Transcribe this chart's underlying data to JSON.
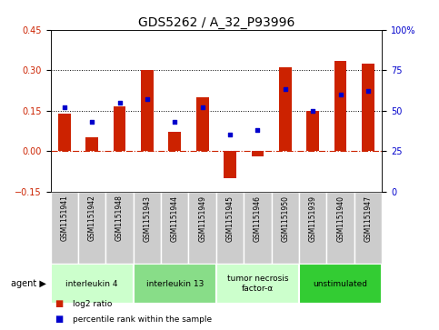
{
  "title": "GDS5262 / A_32_P93996",
  "samples": [
    "GSM1151941",
    "GSM1151942",
    "GSM1151948",
    "GSM1151943",
    "GSM1151944",
    "GSM1151949",
    "GSM1151945",
    "GSM1151946",
    "GSM1151950",
    "GSM1151939",
    "GSM1151940",
    "GSM1151947"
  ],
  "log2_ratio": [
    0.14,
    0.05,
    0.165,
    0.3,
    0.07,
    0.2,
    -0.1,
    -0.02,
    0.31,
    0.148,
    0.335,
    0.325
  ],
  "percentile": [
    52,
    43,
    55,
    57,
    43,
    52,
    35,
    38,
    63,
    50,
    60,
    62
  ],
  "ylim_left": [
    -0.15,
    0.45
  ],
  "ylim_right": [
    0,
    100
  ],
  "yticks_left": [
    -0.15,
    0,
    0.15,
    0.3,
    0.45
  ],
  "yticks_right": [
    0,
    25,
    50,
    75,
    100
  ],
  "hlines": [
    0.15,
    0.3
  ],
  "bar_color": "#cc2200",
  "dot_color": "#0000cc",
  "zero_line_color": "#cc2200",
  "agents": [
    {
      "label": "interleukin 4",
      "start": 0,
      "end": 3,
      "color": "#ccffcc"
    },
    {
      "label": "interleukin 13",
      "start": 3,
      "end": 6,
      "color": "#88dd88"
    },
    {
      "label": "tumor necrosis\nfactor-α",
      "start": 6,
      "end": 9,
      "color": "#ccffcc"
    },
    {
      "label": "unstimulated",
      "start": 9,
      "end": 12,
      "color": "#33cc33"
    }
  ],
  "legend_items": [
    {
      "label": "log2 ratio",
      "color": "#cc2200"
    },
    {
      "label": "percentile rank within the sample",
      "color": "#0000cc"
    }
  ],
  "agent_label": "agent",
  "sample_bg": "#cccccc",
  "sample_border": "#aaaaaa",
  "background_color": "#ffffff",
  "plot_bg": "#ffffff",
  "title_fontsize": 10,
  "tick_fontsize": 7,
  "bar_width": 0.45
}
